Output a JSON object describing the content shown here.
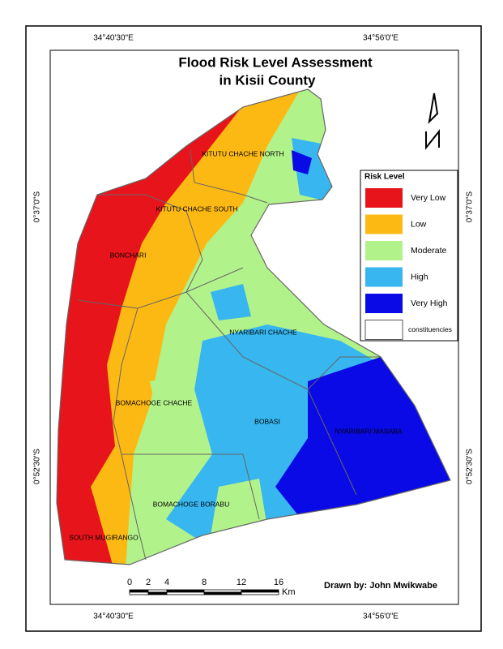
{
  "title": {
    "line1": "Flood Risk Level Assessment",
    "line2": "in Kisii County"
  },
  "coordinates": {
    "top": [
      "34°40'30\"E",
      "34°56'0\"E"
    ],
    "bottom": [
      "34°40'30\"E",
      "34°56'0\"E"
    ],
    "left": [
      "0°37'0\"S",
      "0°52'30\"S"
    ],
    "right": [
      "0°37'0\"S",
      "0°52'30\"S"
    ]
  },
  "constituencies": [
    "KITUTU CHACHE NORTH",
    "KITUTU CHACHE SOUTH",
    "BONCHARI",
    "NYARIBARI CHACHE",
    "BOMACHOGE CHACHE",
    "BOBASI",
    "NYARIBARI MASABA",
    "BOMACHOGE BORABU",
    "SOUTH MUGIRANGO"
  ],
  "legend": {
    "title": "Risk Level",
    "items": [
      {
        "label": "Very Low",
        "color": "#e8141b"
      },
      {
        "label": "Low",
        "color": "#fdb913"
      },
      {
        "label": "Moderate",
        "color": "#b2f28a"
      },
      {
        "label": "High",
        "color": "#37b6f0"
      },
      {
        "label": "Very High",
        "color": "#0a0ae6"
      },
      {
        "label": "constituencies",
        "color": "#ffffff"
      }
    ]
  },
  "scale_bar": {
    "ticks": [
      0,
      2,
      4,
      8,
      12,
      16
    ],
    "unit": "Km"
  },
  "credit": "Drawn by: John Mwikwabe"
}
